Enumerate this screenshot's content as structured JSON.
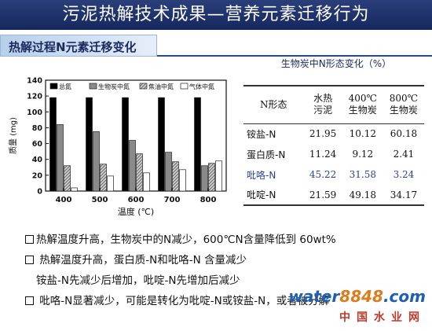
{
  "slide": {
    "title": "污泥热解技术成果—营养元素迁移行为",
    "subtitle": "热解过程N元素迁移变化"
  },
  "chart_data": {
    "type": "bar",
    "title": "",
    "xlabel": "温度 (℃)",
    "ylabel": "质量 (mg)",
    "categories": [
      "400",
      "500",
      "600",
      "700",
      "800"
    ],
    "ylim": [
      0,
      140
    ],
    "yticks": [
      "0",
      "20",
      "40",
      "60",
      "80",
      "100",
      "120",
      "140"
    ],
    "legend_position": "top",
    "series": [
      {
        "name": "总氮",
        "values": [
          118,
          118,
          118,
          118,
          118
        ],
        "fill": "#000000"
      },
      {
        "name": "生物炭中氮",
        "values": [
          84,
          75,
          64,
          49,
          32
        ],
        "fill": "#8a8a8a"
      },
      {
        "name": "焦油中氮",
        "values": [
          32,
          34,
          47,
          37,
          35
        ],
        "fill": "#bdbdbd"
      },
      {
        "name": "气体中氮",
        "values": [
          4,
          19,
          23,
          27,
          38
        ],
        "fill": "#ffffff"
      }
    ]
  },
  "table": {
    "caption": "生物炭中N形态变化（%）",
    "header": {
      "col0": "N形态",
      "col1_line1": "水热",
      "col1_line2": "污泥",
      "col2_line1": "400℃",
      "col2_line2": "生物炭",
      "col3_line1": "800℃",
      "col3_line2": "生物炭"
    },
    "rows": [
      {
        "name": "铵盐-N",
        "c1": "21.95",
        "c2": "10.12",
        "c3": "60.18"
      },
      {
        "name": "蛋白质-N",
        "c1": "11.24",
        "c2": "9.12",
        "c3": "2.41"
      },
      {
        "name": "吡咯-N",
        "c1": "45.22",
        "c2": "31.58",
        "c3": "3.24"
      },
      {
        "name": "吡啶-N",
        "c1": "21.59",
        "c2": "49.18",
        "c3": "34.17"
      }
    ]
  },
  "bullets": {
    "b1": "热解温度升高，生物炭中的N减少，600℃N含量降低到 60wt%",
    "b2": "热解温度升高，蛋白质-N和吡咯-N 含量减少",
    "b3": "铵盐-N先减少后增加，吡啶-N先增加后减少",
    "b4": "吡咯-N显著减少，可能是转化为吡啶-N或铵盐-N，或者被分解"
  },
  "watermark": {
    "logo_word": "water",
    "logo_num": "8848",
    "logo_tld": ".com",
    "site_name": "中国水业网"
  }
}
